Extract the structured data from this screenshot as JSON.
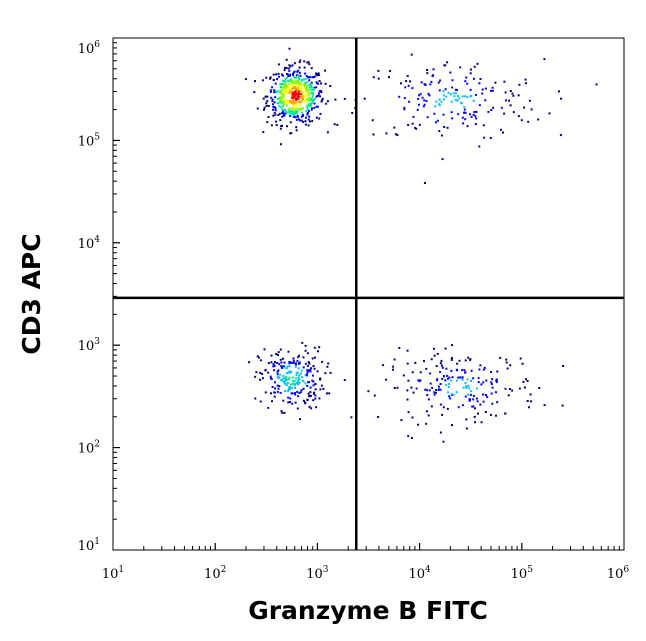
{
  "chart_data": {
    "type": "scatter",
    "title": "",
    "xlabel": "Granzyme B FITC",
    "ylabel": "CD3 APC",
    "x_scale": "log",
    "y_scale": "log",
    "xlim": [
      10,
      1000000
    ],
    "ylim": [
      10,
      1000000
    ],
    "x_ticks": [
      {
        "base": "10",
        "exp": "1",
        "value": 10
      },
      {
        "base": "10",
        "exp": "2",
        "value": 100
      },
      {
        "base": "10",
        "exp": "3",
        "value": 1000
      },
      {
        "base": "10",
        "exp": "4",
        "value": 10000
      },
      {
        "base": "10",
        "exp": "5",
        "value": 100000
      },
      {
        "base": "10",
        "exp": "6",
        "value": 1000000
      }
    ],
    "y_ticks": [
      {
        "base": "10",
        "exp": "1",
        "value": 10
      },
      {
        "base": "10",
        "exp": "2",
        "value": 100
      },
      {
        "base": "10",
        "exp": "3",
        "value": 1000
      },
      {
        "base": "10",
        "exp": "4",
        "value": 10000
      },
      {
        "base": "10",
        "exp": "5",
        "value": 100000
      },
      {
        "base": "10",
        "exp": "6",
        "value": 1000000
      }
    ],
    "quadrant_gate": {
      "x": 2400,
      "y": 2900
    },
    "populations": [
      {
        "center": [
          600,
          280000
        ],
        "spread": [
          0.14,
          0.14
        ],
        "count": 520,
        "density": "high"
      },
      {
        "center": [
          20000,
          250000
        ],
        "spread": [
          0.45,
          0.2
        ],
        "count": 190,
        "density": "low"
      },
      {
        "center": [
          550,
          480
        ],
        "spread": [
          0.16,
          0.15
        ],
        "count": 240,
        "density": "medium"
      },
      {
        "center": [
          25000,
          400
        ],
        "spread": [
          0.38,
          0.17
        ],
        "count": 210,
        "density": "low"
      }
    ],
    "colors": {
      "density_scale": [
        "#00008b",
        "#0000ff",
        "#00bfff",
        "#00e5a0",
        "#7fff00",
        "#ffff00",
        "#ffa500",
        "#ff0000"
      ],
      "axis": "#000000",
      "gate": "#000000"
    }
  }
}
